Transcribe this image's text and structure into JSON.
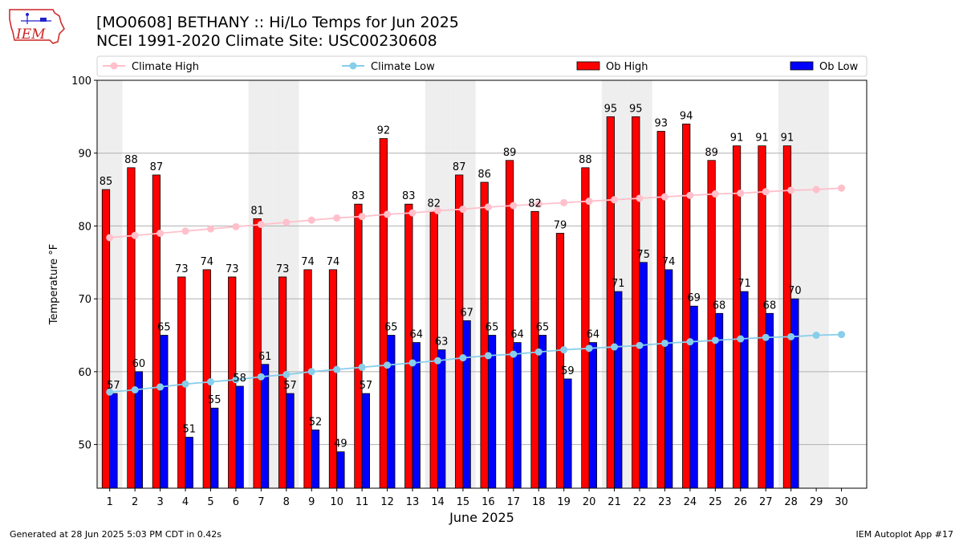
{
  "header": {
    "title_line1": "[MO0608] BETHANY :: Hi/Lo Temps for Jun 2025",
    "title_line2": "NCEI 1991-2020 Climate Site: USC00230608",
    "logo_text": "IEM"
  },
  "footer": {
    "generated": "Generated at 28 Jun 2025 5:03 PM CDT in 0.42s",
    "app": "IEM Autoplot App #17"
  },
  "colors": {
    "ob_high": "#ff0000",
    "ob_low": "#0000ff",
    "climate_high": "#ffc0cb",
    "climate_low": "#87ceeb",
    "weekend_shade": "#eeeeee",
    "logo": "#cc2222"
  },
  "chart_data": {
    "type": "bar",
    "xlabel": "June 2025",
    "ylabel": "Temperature °F",
    "ylim": [
      44,
      100
    ],
    "yticks": [
      50,
      60,
      70,
      80,
      90,
      100
    ],
    "grid": true,
    "legend_position": "top",
    "legend": [
      "Climate High",
      "Climate Low",
      "Ob High",
      "Ob Low"
    ],
    "categories": [
      "1",
      "2",
      "3",
      "4",
      "5",
      "6",
      "7",
      "8",
      "9",
      "10",
      "11",
      "12",
      "13",
      "14",
      "15",
      "16",
      "17",
      "18",
      "19",
      "20",
      "21",
      "22",
      "23",
      "24",
      "25",
      "26",
      "27",
      "28",
      "29",
      "30"
    ],
    "weekend_days": [
      1,
      7,
      8,
      14,
      15,
      21,
      22,
      28,
      29
    ],
    "series": [
      {
        "name": "Ob High",
        "kind": "bar",
        "values": [
          85,
          88,
          87,
          73,
          74,
          73,
          81,
          73,
          74,
          74,
          83,
          92,
          83,
          82,
          87,
          86,
          89,
          82,
          79,
          88,
          95,
          95,
          93,
          94,
          89,
          91,
          91,
          91,
          null,
          null
        ]
      },
      {
        "name": "Ob Low",
        "kind": "bar",
        "values": [
          57,
          60,
          65,
          51,
          55,
          58,
          61,
          57,
          52,
          49,
          57,
          65,
          64,
          63,
          67,
          65,
          64,
          65,
          59,
          64,
          71,
          75,
          74,
          69,
          68,
          71,
          68,
          70,
          null,
          null
        ]
      },
      {
        "name": "Climate High",
        "kind": "line",
        "values": [
          78.4,
          78.7,
          79.0,
          79.3,
          79.6,
          79.9,
          80.2,
          80.5,
          80.8,
          81.1,
          81.3,
          81.6,
          81.8,
          82.1,
          82.3,
          82.6,
          82.8,
          83.0,
          83.2,
          83.4,
          83.6,
          83.8,
          84.0,
          84.2,
          84.4,
          84.5,
          84.7,
          84.9,
          85.0,
          85.2
        ]
      },
      {
        "name": "Climate Low",
        "kind": "line",
        "values": [
          57.2,
          57.5,
          57.9,
          58.3,
          58.6,
          58.9,
          59.3,
          59.6,
          60.0,
          60.3,
          60.6,
          60.9,
          61.2,
          61.5,
          61.9,
          62.2,
          62.4,
          62.7,
          63.0,
          63.2,
          63.4,
          63.6,
          63.9,
          64.1,
          64.3,
          64.5,
          64.7,
          64.8,
          65.0,
          65.1
        ]
      }
    ]
  }
}
